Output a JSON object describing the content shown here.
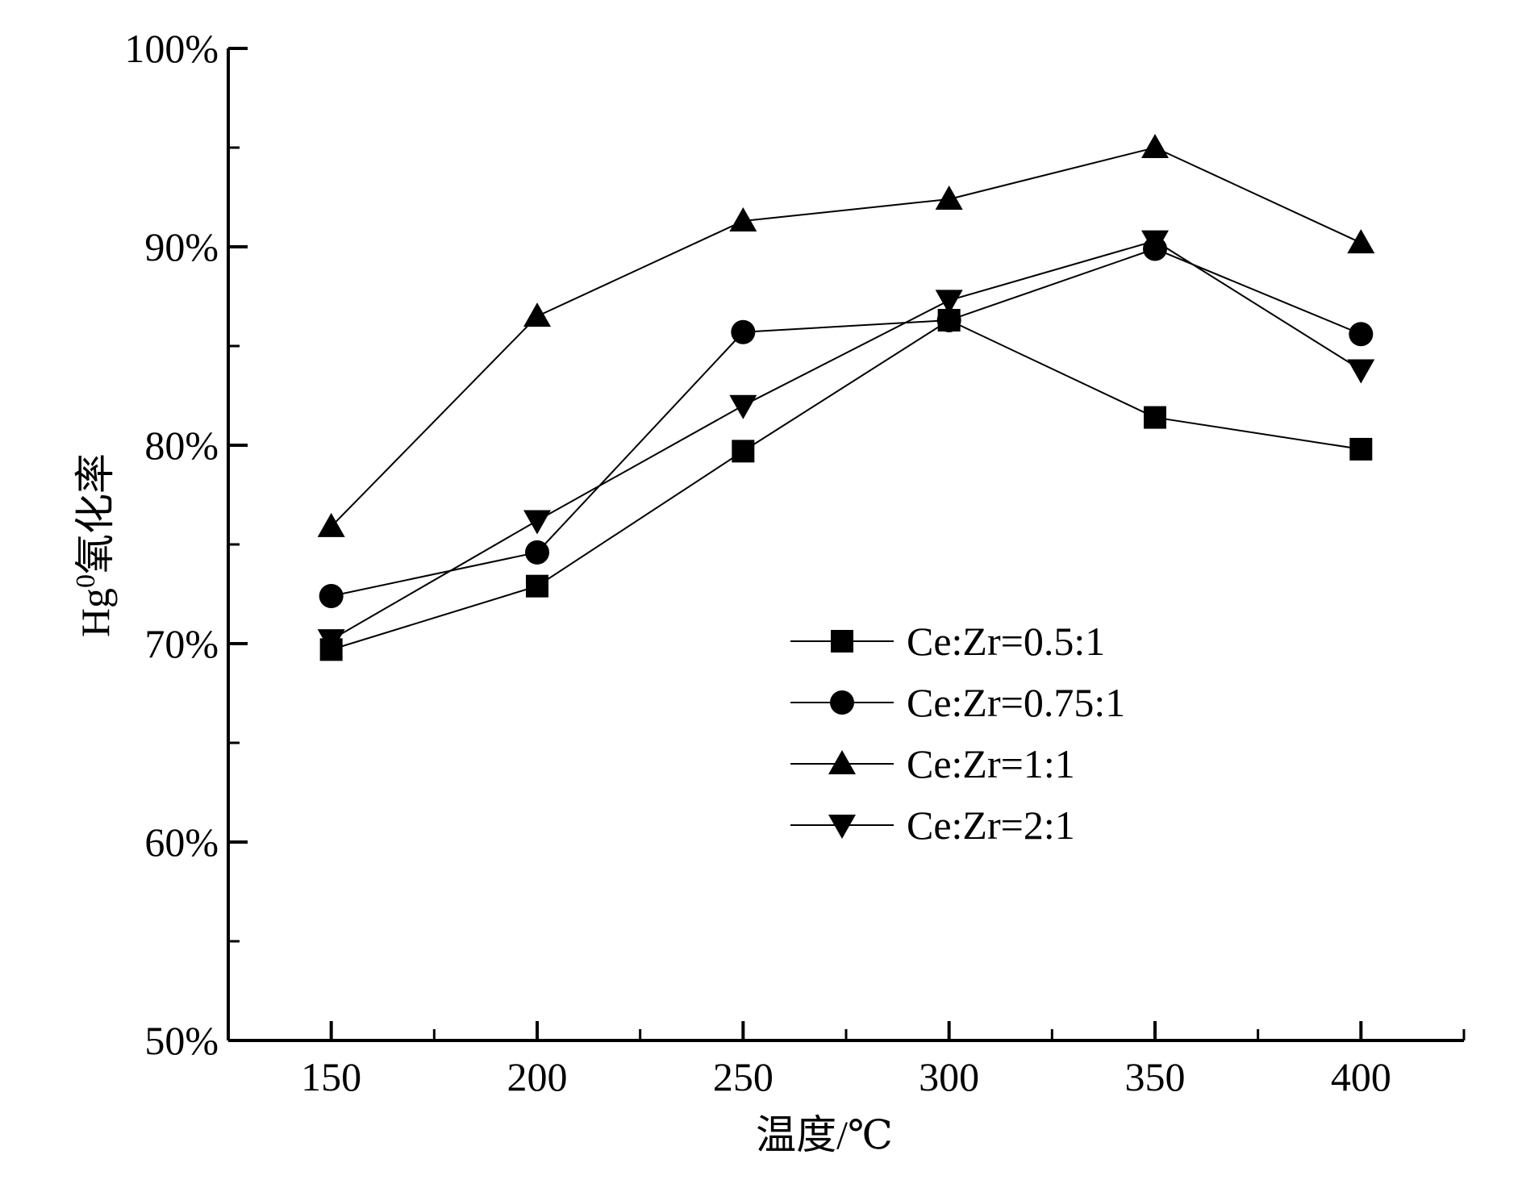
{
  "chart_data": {
    "type": "line",
    "title": "",
    "xlabel": "温度/℃",
    "ylabel_prefix": "Hg",
    "ylabel_superscript": "0",
    "ylabel_suffix": "氧化率",
    "x": [
      150,
      200,
      250,
      300,
      350,
      400
    ],
    "xlim": [
      125,
      425
    ],
    "x_major_ticks": [
      150,
      200,
      250,
      300,
      350,
      400
    ],
    "x_tick_labels": [
      "150",
      "200",
      "250",
      "300",
      "350",
      "400"
    ],
    "x_minor_ticks": [
      175,
      225,
      275,
      325,
      375,
      425
    ],
    "ylim": [
      50,
      100
    ],
    "y_major_ticks": [
      50,
      60,
      70,
      80,
      90,
      100
    ],
    "y_tick_labels": [
      "50%",
      "60%",
      "70%",
      "80%",
      "90%",
      "100%"
    ],
    "y_minor_ticks": [
      55,
      65,
      75,
      85,
      95
    ],
    "grid": false,
    "legend_position": "center-right",
    "series": [
      {
        "name": "Ce:Zr=0.5:1",
        "marker": "square",
        "values": [
          69.7,
          72.9,
          79.7,
          86.3,
          81.4,
          79.8
        ]
      },
      {
        "name": "Ce:Zr=0.75:1",
        "marker": "circle",
        "values": [
          72.4,
          74.6,
          85.7,
          86.3,
          89.9,
          85.6
        ]
      },
      {
        "name": "Ce:Zr=1:1",
        "marker": "triangle-up",
        "values": [
          75.9,
          86.5,
          91.3,
          92.4,
          95.0,
          90.2
        ]
      },
      {
        "name": "Ce:Zr=2:1",
        "marker": "triangle-down",
        "values": [
          70.2,
          76.2,
          82.0,
          87.3,
          90.3,
          83.8
        ]
      }
    ]
  }
}
